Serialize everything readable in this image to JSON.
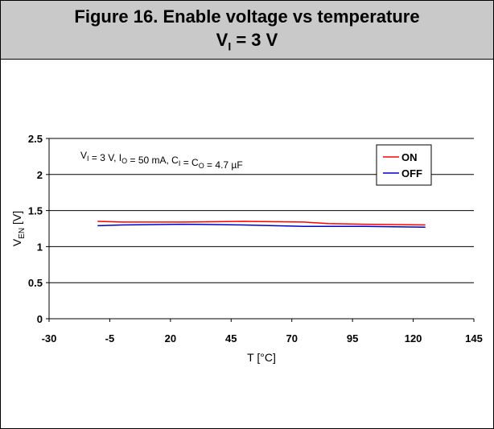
{
  "figure": {
    "title_line1": "Figure 16. Enable voltage vs temperature",
    "title_line2_main": "V",
    "title_line2_sub": "I",
    "title_line2_rest": " = 3 V"
  },
  "chart_data": {
    "type": "line",
    "title": "",
    "xlabel": "T [°C]",
    "ylabel": "V_EN [V]",
    "xlim": [
      -30,
      145
    ],
    "ylim": [
      0,
      2.5
    ],
    "xticks": [
      -30,
      -5,
      20,
      45,
      70,
      95,
      120,
      145
    ],
    "yticks": [
      0,
      0.5,
      1,
      1.5,
      2,
      2.5
    ],
    "grid": "horizontal",
    "legend_position": "top-right",
    "annotation": "V_I = 3 V, I_O = 50 mA, C_I = C_O = 4.7 µF",
    "x": [
      -10,
      0,
      25,
      50,
      75,
      85,
      100,
      125
    ],
    "series": [
      {
        "name": "ON",
        "color": "#ff0000",
        "values": [
          1.35,
          1.34,
          1.34,
          1.35,
          1.34,
          1.32,
          1.31,
          1.3
        ]
      },
      {
        "name": "OFF",
        "color": "#0000cc",
        "values": [
          1.29,
          1.3,
          1.31,
          1.3,
          1.28,
          1.28,
          1.28,
          1.27
        ]
      }
    ]
  }
}
